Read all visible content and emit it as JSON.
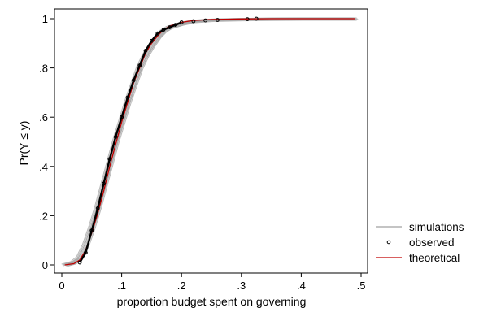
{
  "chart_data": {
    "type": "line",
    "title": "",
    "xlabel": "proportion budget spent on governing",
    "ylabel": "Pr(Y ≤ y)",
    "xlim": [
      0,
      0.5
    ],
    "ylim": [
      0,
      1
    ],
    "xticks": [
      0,
      0.1,
      0.2,
      0.3,
      0.4,
      0.5
    ],
    "xtick_labels": [
      "0",
      ".1",
      ".2",
      ".3",
      ".4",
      ".5"
    ],
    "yticks": [
      0,
      0.2,
      0.4,
      0.6,
      0.8,
      1
    ],
    "ytick_labels": [
      "0",
      ".2",
      ".4",
      ".6",
      ".8",
      "1"
    ],
    "grid": false,
    "legend_position": "right",
    "series": [
      {
        "name": "simulations",
        "kind": "line",
        "color": "#a0a0a0",
        "x": [
          0.005,
          0.02,
          0.03,
          0.04,
          0.05,
          0.06,
          0.07,
          0.08,
          0.09,
          0.1,
          0.11,
          0.12,
          0.13,
          0.14,
          0.15,
          0.16,
          0.17,
          0.18,
          0.2,
          0.22,
          0.25,
          0.3,
          0.35,
          0.4,
          0.49
        ],
        "y": [
          0.0,
          0.01,
          0.03,
          0.08,
          0.15,
          0.23,
          0.32,
          0.41,
          0.5,
          0.58,
          0.66,
          0.73,
          0.8,
          0.85,
          0.89,
          0.925,
          0.95,
          0.965,
          0.98,
          0.99,
          0.995,
          0.998,
          0.999,
          1.0,
          1.0
        ]
      },
      {
        "name": "observed",
        "kind": "points",
        "color": "#000000",
        "x": [
          0.03,
          0.04,
          0.05,
          0.06,
          0.07,
          0.08,
          0.09,
          0.1,
          0.11,
          0.12,
          0.13,
          0.14,
          0.15,
          0.16,
          0.17,
          0.18,
          0.19,
          0.2,
          0.22,
          0.24,
          0.26,
          0.31,
          0.325
        ],
        "y": [
          0.01,
          0.05,
          0.14,
          0.23,
          0.33,
          0.43,
          0.52,
          0.6,
          0.68,
          0.75,
          0.81,
          0.87,
          0.91,
          0.94,
          0.955,
          0.965,
          0.975,
          0.985,
          0.99,
          0.993,
          0.995,
          0.998,
          1.0
        ]
      },
      {
        "name": "theoretical",
        "kind": "line",
        "color": "#c00000",
        "x": [
          0.005,
          0.02,
          0.03,
          0.04,
          0.05,
          0.06,
          0.07,
          0.08,
          0.09,
          0.1,
          0.11,
          0.12,
          0.13,
          0.14,
          0.15,
          0.16,
          0.17,
          0.18,
          0.2,
          0.22,
          0.25,
          0.3,
          0.35,
          0.4,
          0.49
        ],
        "y": [
          0.0,
          0.005,
          0.02,
          0.06,
          0.13,
          0.21,
          0.3,
          0.4,
          0.49,
          0.58,
          0.66,
          0.74,
          0.8,
          0.86,
          0.9,
          0.93,
          0.955,
          0.97,
          0.985,
          0.993,
          0.997,
          0.999,
          1.0,
          1.0,
          1.0
        ]
      }
    ]
  }
}
